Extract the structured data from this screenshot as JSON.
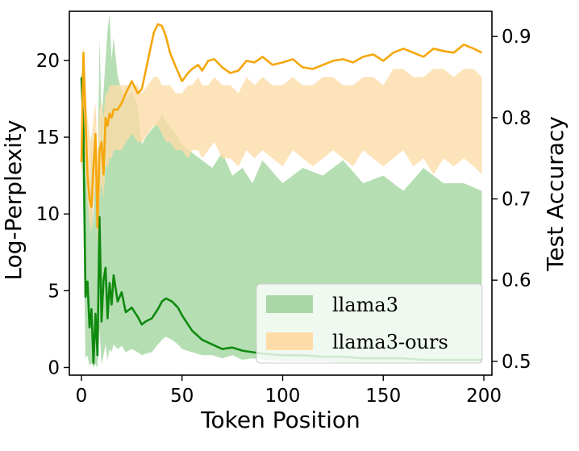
{
  "chart_data": {
    "type": "line",
    "xlabel": "Token Position",
    "ylabel_left": "Log-Perplexity",
    "ylabel_right": "Test Accuracy",
    "xlim": [
      -6,
      204
    ],
    "ylim_left": [
      -0.5,
      23.2
    ],
    "ylim_right": [
      0.483,
      0.931
    ],
    "x_ticks": [
      0,
      50,
      100,
      150,
      200
    ],
    "y_ticks_left": [
      0,
      5,
      10,
      15,
      20
    ],
    "y_ticks_right": [
      0.5,
      0.6,
      0.7,
      0.8,
      0.9
    ],
    "grid": false,
    "legend_position": "lower-right",
    "legend": [
      {
        "label": "llama3",
        "color": "#a9d8a6"
      },
      {
        "label": "llama3-ours",
        "color": "#fddca8"
      }
    ],
    "colors": {
      "llama3_line": "#0f8a0f",
      "llama3_band": "#a9d8a6",
      "ours_line": "#f5a70c",
      "ours_band": "#fddca8"
    },
    "series": [
      {
        "label": "llama3",
        "axis": "left",
        "x": [
          0,
          1,
          2,
          3,
          4,
          5,
          6,
          7,
          8,
          9,
          10,
          11,
          12,
          13,
          14,
          15,
          16,
          18,
          20,
          22,
          25,
          28,
          30,
          32,
          35,
          38,
          40,
          42,
          45,
          48,
          50,
          55,
          60,
          65,
          70,
          75,
          80,
          85,
          90,
          100,
          110,
          120,
          130,
          140,
          150,
          160,
          170,
          180,
          190,
          199
        ],
        "y": [
          18.9,
          15.5,
          4.6,
          5.6,
          2.6,
          3.8,
          0.3,
          3.5,
          0.8,
          9.8,
          3.0,
          5.7,
          6.5,
          3.2,
          5.5,
          4.1,
          6.0,
          4.3,
          4.9,
          3.6,
          3.9,
          3.3,
          2.8,
          3.0,
          3.2,
          3.8,
          4.3,
          4.5,
          4.3,
          3.9,
          3.4,
          2.4,
          1.8,
          1.5,
          1.2,
          1.3,
          1.1,
          1.0,
          0.9,
          0.8,
          0.8,
          0.7,
          0.7,
          0.6,
          0.6,
          0.6,
          0.5,
          0.5,
          0.5,
          0.5
        ],
        "lower": [
          18.0,
          9.0,
          0.6,
          0.8,
          0.1,
          0.3,
          0.0,
          0.2,
          0.0,
          2.5,
          0.2,
          0.8,
          1.5,
          0.5,
          1.2,
          1.0,
          1.5,
          1.2,
          1.4,
          1.0,
          1.2,
          1.0,
          0.8,
          0.9,
          1.0,
          1.5,
          1.8,
          2.0,
          1.8,
          1.5,
          1.2,
          1.0,
          0.8,
          0.8,
          0.6,
          0.8,
          0.5,
          0.6,
          0.5,
          0.4,
          0.4,
          0.4,
          0.3,
          0.3,
          0.3,
          0.3,
          0.3,
          0.3,
          0.3,
          0.3
        ],
        "upper": [
          19.2,
          19.0,
          12.0,
          14.0,
          10.0,
          15.5,
          9.0,
          15.0,
          12.0,
          21.5,
          16.0,
          18.0,
          20.0,
          22.0,
          23.0,
          20.0,
          21.5,
          19.0,
          18.0,
          17.5,
          18.0,
          17.0,
          14.5,
          15.0,
          15.5,
          16.0,
          16.5,
          16.0,
          15.5,
          15.0,
          14.5,
          14.0,
          13.5,
          13.0,
          14.0,
          12.5,
          13.0,
          12.0,
          13.5,
          12.0,
          13.0,
          12.5,
          13.5,
          12.0,
          12.5,
          11.5,
          13.0,
          12.0,
          12.0,
          11.5
        ]
      },
      {
        "label": "llama3-ours",
        "axis": "right",
        "x": [
          0,
          1,
          2,
          3,
          4,
          5,
          6,
          7,
          8,
          9,
          10,
          11,
          12,
          13,
          14,
          15,
          16,
          18,
          20,
          22,
          25,
          28,
          30,
          33,
          36,
          38,
          40,
          42,
          44,
          47,
          50,
          53,
          55,
          58,
          60,
          63,
          66,
          70,
          74,
          78,
          82,
          86,
          90,
          95,
          100,
          105,
          110,
          115,
          120,
          125,
          130,
          135,
          140,
          145,
          150,
          155,
          160,
          165,
          170,
          175,
          180,
          185,
          190,
          195,
          199
        ],
        "y": [
          0.745,
          0.88,
          0.8,
          0.73,
          0.7,
          0.69,
          0.74,
          0.78,
          0.665,
          0.76,
          0.77,
          0.73,
          0.8,
          0.79,
          0.805,
          0.8,
          0.81,
          0.81,
          0.818,
          0.83,
          0.845,
          0.83,
          0.835,
          0.87,
          0.905,
          0.915,
          0.913,
          0.9,
          0.88,
          0.862,
          0.845,
          0.855,
          0.86,
          0.865,
          0.858,
          0.87,
          0.872,
          0.862,
          0.855,
          0.858,
          0.87,
          0.868,
          0.875,
          0.865,
          0.868,
          0.872,
          0.862,
          0.86,
          0.865,
          0.87,
          0.872,
          0.868,
          0.875,
          0.878,
          0.87,
          0.88,
          0.885,
          0.88,
          0.875,
          0.885,
          0.882,
          0.88,
          0.89,
          0.885,
          0.88
        ],
        "lower": [
          0.7,
          0.8,
          0.74,
          0.7,
          0.67,
          0.66,
          0.69,
          0.72,
          0.64,
          0.7,
          0.72,
          0.7,
          0.74,
          0.74,
          0.75,
          0.75,
          0.76,
          0.76,
          0.76,
          0.77,
          0.78,
          0.77,
          0.77,
          0.78,
          0.79,
          0.79,
          0.78,
          0.77,
          0.77,
          0.76,
          0.76,
          0.75,
          0.76,
          0.76,
          0.75,
          0.76,
          0.77,
          0.75,
          0.75,
          0.74,
          0.76,
          0.75,
          0.76,
          0.75,
          0.74,
          0.76,
          0.75,
          0.74,
          0.75,
          0.76,
          0.75,
          0.74,
          0.76,
          0.75,
          0.74,
          0.75,
          0.76,
          0.74,
          0.75,
          0.73,
          0.75,
          0.74,
          0.75,
          0.74,
          0.73
        ],
        "upper": [
          0.78,
          0.89,
          0.84,
          0.8,
          0.78,
          0.77,
          0.8,
          0.82,
          0.75,
          0.81,
          0.82,
          0.8,
          0.83,
          0.83,
          0.84,
          0.84,
          0.84,
          0.84,
          0.84,
          0.84,
          0.84,
          0.84,
          0.83,
          0.84,
          0.85,
          0.85,
          0.84,
          0.84,
          0.84,
          0.83,
          0.83,
          0.84,
          0.84,
          0.85,
          0.84,
          0.84,
          0.85,
          0.84,
          0.84,
          0.83,
          0.85,
          0.84,
          0.85,
          0.84,
          0.84,
          0.85,
          0.84,
          0.84,
          0.85,
          0.85,
          0.84,
          0.84,
          0.85,
          0.85,
          0.84,
          0.86,
          0.86,
          0.85,
          0.85,
          0.86,
          0.86,
          0.85,
          0.86,
          0.86,
          0.85
        ]
      }
    ]
  }
}
